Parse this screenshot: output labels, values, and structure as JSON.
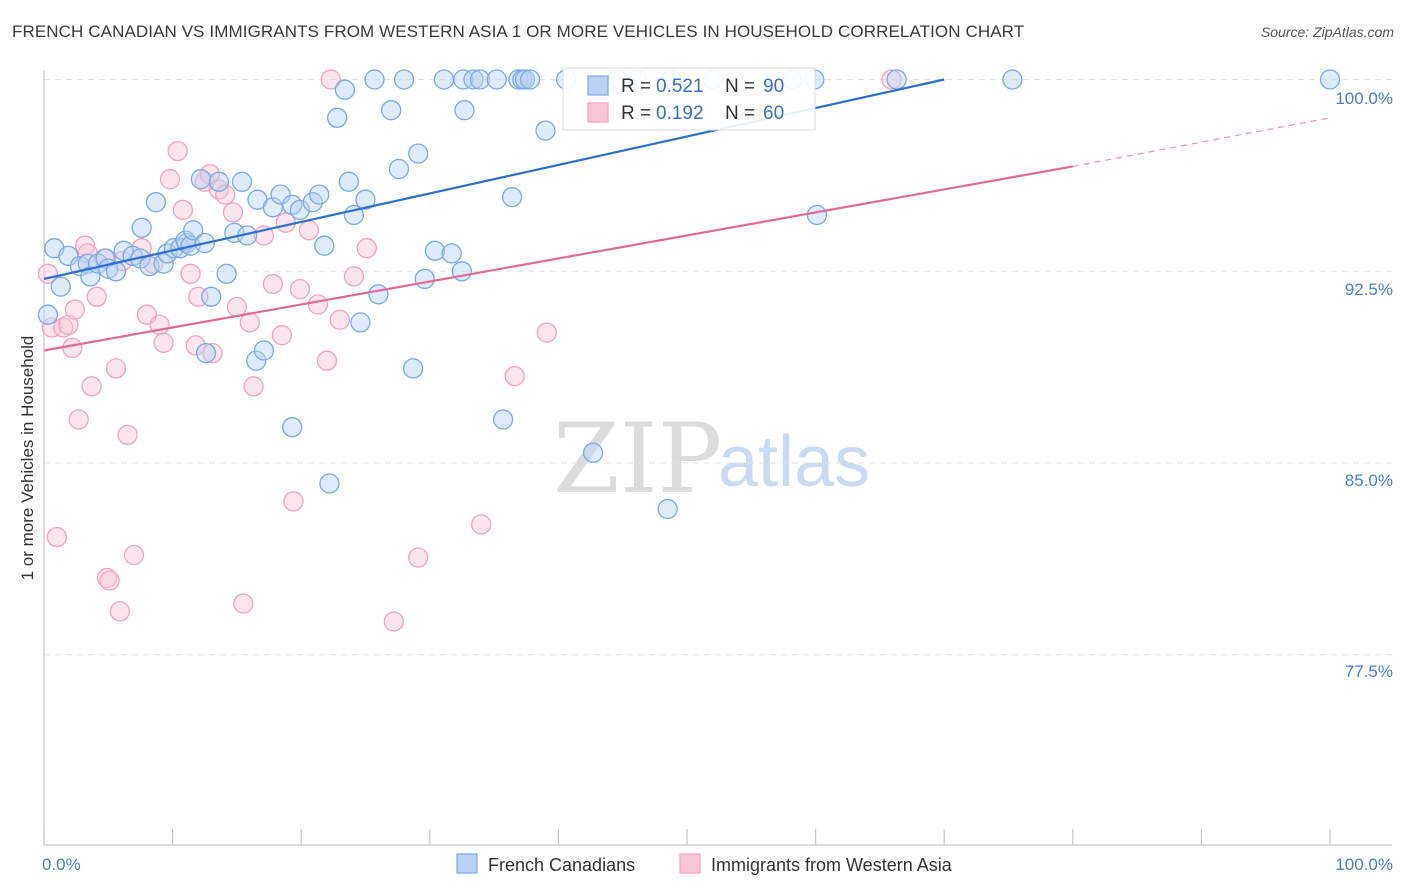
{
  "title": "FRENCH CANADIAN VS IMMIGRANTS FROM WESTERN ASIA 1 OR MORE VEHICLES IN HOUSEHOLD CORRELATION CHART",
  "source": "Source: ZipAtlas.com",
  "watermark": {
    "zip": "ZIP",
    "atlas": "atlas"
  },
  "legend_box": {
    "rows": [
      {
        "r_label": "R =",
        "r_value": "0.521",
        "n_label": "N =",
        "n_value": "90"
      },
      {
        "r_label": "R =",
        "r_value": "0.192",
        "n_label": "N =",
        "n_value": "60"
      }
    ]
  },
  "bottom_legend": [
    {
      "label": "French Canadians"
    },
    {
      "label": "Immigrants from Western Asia"
    }
  ],
  "chart_data": {
    "type": "scatter",
    "title": "FRENCH CANADIAN VS IMMIGRANTS FROM WESTERN ASIA 1 OR MORE VEHICLES IN HOUSEHOLD CORRELATION CHART",
    "xlabel": "",
    "ylabel": "1 or more Vehicles in Household",
    "xlim": [
      0,
      100
    ],
    "ylim": [
      70.5,
      101.0
    ],
    "x_tick_labels": [
      "0.0%",
      "100.0%"
    ],
    "y_ticks": [
      {
        "value": 77.5,
        "label": "77.5%"
      },
      {
        "value": 85.0,
        "label": "85.0%"
      },
      {
        "value": 92.5,
        "label": "92.5%"
      },
      {
        "value": 100.0,
        "label": "100.0%"
      }
    ],
    "grid": true,
    "series": [
      {
        "name": "French Canadians",
        "color": "#7aaae6",
        "line_color": "#2f6fd0",
        "r": 0.521,
        "n": 90,
        "trend": {
          "x": [
            0,
            70
          ],
          "y": [
            92.2,
            100.0
          ]
        },
        "points": [
          [
            0.3,
            90.8
          ],
          [
            1.3,
            91.9
          ],
          [
            0.8,
            93.4
          ],
          [
            1.9,
            93.1
          ],
          [
            2.8,
            92.7
          ],
          [
            3.4,
            92.8
          ],
          [
            3.6,
            92.3
          ],
          [
            4.2,
            92.8
          ],
          [
            4.8,
            93.0
          ],
          [
            5.0,
            92.6
          ],
          [
            5.6,
            92.5
          ],
          [
            6.2,
            93.3
          ],
          [
            6.9,
            93.1
          ],
          [
            7.6,
            94.2
          ],
          [
            7.5,
            93.0
          ],
          [
            8.2,
            92.7
          ],
          [
            9.3,
            92.8
          ],
          [
            8.7,
            95.2
          ],
          [
            9.6,
            93.2
          ],
          [
            10.1,
            93.4
          ],
          [
            10.6,
            93.4
          ],
          [
            11.1,
            93.6
          ],
          [
            11.0,
            93.7
          ],
          [
            11.4,
            93.5
          ],
          [
            11.6,
            94.1
          ],
          [
            12.2,
            96.1
          ],
          [
            12.5,
            93.6
          ],
          [
            12.6,
            89.3
          ],
          [
            13.0,
            91.5
          ],
          [
            13.6,
            96.0
          ],
          [
            14.2,
            92.4
          ],
          [
            14.8,
            94.0
          ],
          [
            15.4,
            96.0
          ],
          [
            15.8,
            93.9
          ],
          [
            16.5,
            89.0
          ],
          [
            17.1,
            89.4
          ],
          [
            16.6,
            95.3
          ],
          [
            17.8,
            95.0
          ],
          [
            18.4,
            95.5
          ],
          [
            19.3,
            95.1
          ],
          [
            19.3,
            86.4
          ],
          [
            19.9,
            94.9
          ],
          [
            20.9,
            95.2
          ],
          [
            21.4,
            95.5
          ],
          [
            21.8,
            93.5
          ],
          [
            22.2,
            84.2
          ],
          [
            22.8,
            98.5
          ],
          [
            23.4,
            99.6
          ],
          [
            23.7,
            96.0
          ],
          [
            24.1,
            94.7
          ],
          [
            24.6,
            90.5
          ],
          [
            25.0,
            95.3
          ],
          [
            25.7,
            100.0
          ],
          [
            26.0,
            91.6
          ],
          [
            27.0,
            98.8
          ],
          [
            27.6,
            96.5
          ],
          [
            28.0,
            100.0
          ],
          [
            28.7,
            88.7
          ],
          [
            29.1,
            97.1
          ],
          [
            29.6,
            92.2
          ],
          [
            30.4,
            93.3
          ],
          [
            31.1,
            100.0
          ],
          [
            31.7,
            93.2
          ],
          [
            32.5,
            92.5
          ],
          [
            32.7,
            98.8
          ],
          [
            32.6,
            100.0
          ],
          [
            33.4,
            100.0
          ],
          [
            33.9,
            100.0
          ],
          [
            35.2,
            100.0
          ],
          [
            35.7,
            86.7
          ],
          [
            36.4,
            95.4
          ],
          [
            36.9,
            100.0
          ],
          [
            37.2,
            100.0
          ],
          [
            37.4,
            100.0
          ],
          [
            37.8,
            100.0
          ],
          [
            39.0,
            98.0
          ],
          [
            40.6,
            100.0
          ],
          [
            42.7,
            85.4
          ],
          [
            44.0,
            100.0
          ],
          [
            46.1,
            100.0
          ],
          [
            44.6,
            100.0
          ],
          [
            48.5,
            83.2
          ],
          [
            48.8,
            100.0
          ],
          [
            52.0,
            100.0
          ],
          [
            58.2,
            100.0
          ],
          [
            60.1,
            94.7
          ],
          [
            59.9,
            100.0
          ],
          [
            66.3,
            100.0
          ],
          [
            75.3,
            100.0
          ],
          [
            100.0,
            100.0
          ]
        ]
      },
      {
        "name": "Immigrants from Western Asia",
        "color": "#f3a3bd",
        "line_color": "#e06b94",
        "r": 0.192,
        "n": 60,
        "trend": {
          "x": [
            0,
            80
          ],
          "y": [
            89.4,
            96.6
          ]
        },
        "trend_dashed": {
          "x": [
            80,
            100
          ],
          "y": [
            96.6,
            98.5
          ]
        },
        "points": [
          [
            0.3,
            92.4
          ],
          [
            0.6,
            90.3
          ],
          [
            1.0,
            82.1
          ],
          [
            1.5,
            90.3
          ],
          [
            1.9,
            90.4
          ],
          [
            2.2,
            89.5
          ],
          [
            2.4,
            91.0
          ],
          [
            2.7,
            86.7
          ],
          [
            3.2,
            93.5
          ],
          [
            3.4,
            93.2
          ],
          [
            3.7,
            88.0
          ],
          [
            4.1,
            91.5
          ],
          [
            4.7,
            93.0
          ],
          [
            4.9,
            80.5
          ],
          [
            5.1,
            80.4
          ],
          [
            5.6,
            88.7
          ],
          [
            5.9,
            79.2
          ],
          [
            6.1,
            92.9
          ],
          [
            6.5,
            86.1
          ],
          [
            7.0,
            81.4
          ],
          [
            7.6,
            93.4
          ],
          [
            8.0,
            90.8
          ],
          [
            8.5,
            92.8
          ],
          [
            9.0,
            90.4
          ],
          [
            9.3,
            89.7
          ],
          [
            9.8,
            96.1
          ],
          [
            10.4,
            97.2
          ],
          [
            10.8,
            94.9
          ],
          [
            11.4,
            92.4
          ],
          [
            11.8,
            89.6
          ],
          [
            12.0,
            91.5
          ],
          [
            12.5,
            96.0
          ],
          [
            12.9,
            96.3
          ],
          [
            13.1,
            89.3
          ],
          [
            13.6,
            95.7
          ],
          [
            14.1,
            95.5
          ],
          [
            14.7,
            94.8
          ],
          [
            15.0,
            91.1
          ],
          [
            15.5,
            79.5
          ],
          [
            16.0,
            90.5
          ],
          [
            16.3,
            88.0
          ],
          [
            17.1,
            93.9
          ],
          [
            17.8,
            92.0
          ],
          [
            18.5,
            90.0
          ],
          [
            18.8,
            94.4
          ],
          [
            19.4,
            83.5
          ],
          [
            19.9,
            91.8
          ],
          [
            20.6,
            94.1
          ],
          [
            21.3,
            91.2
          ],
          [
            22.0,
            89.0
          ],
          [
            22.3,
            100.0
          ],
          [
            23.0,
            90.6
          ],
          [
            24.1,
            92.3
          ],
          [
            25.1,
            93.4
          ],
          [
            27.2,
            78.8
          ],
          [
            29.1,
            81.3
          ],
          [
            34.0,
            82.6
          ],
          [
            36.6,
            88.4
          ],
          [
            39.1,
            90.1
          ],
          [
            65.9,
            100.0
          ]
        ]
      }
    ]
  }
}
